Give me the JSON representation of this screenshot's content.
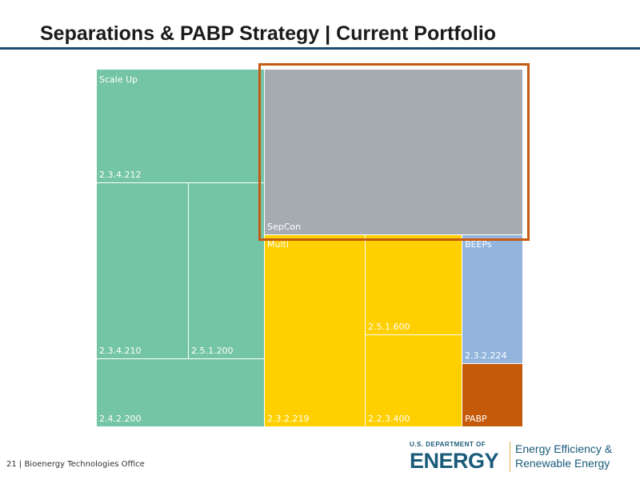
{
  "title": "Separations & PABP Strategy | Current Portfolio",
  "footer": "21 | Bioenergy Technologies Office",
  "logo": {
    "dept": "U.S. DEPARTMENT OF",
    "name": "ENERGY",
    "office_line1": "Energy Efficiency &",
    "office_line2": "Renewable Energy"
  },
  "colors": {
    "green": "#74c4a6",
    "gray": "#a5abb1",
    "yellow": "#ffcf00",
    "blue": "#92b4dd",
    "orange": "#c55a0a",
    "highlight": "#c55a11"
  },
  "treemap": {
    "scale_up": {
      "group": "Scale Up",
      "label": "2.3.4.212"
    },
    "c210": "2.3.4.210",
    "c5200": "2.5.1.200",
    "c4200": "2.4.2.200",
    "sepcon": "SepCon",
    "multi": {
      "group": "Multi",
      "label": "2.3.2.219"
    },
    "c600": "2.5.1.600",
    "c3400": "2.2.3.400",
    "beeps": {
      "group": "BEEPs",
      "label": "2.3.2.224"
    },
    "pabp": "PABP"
  }
}
